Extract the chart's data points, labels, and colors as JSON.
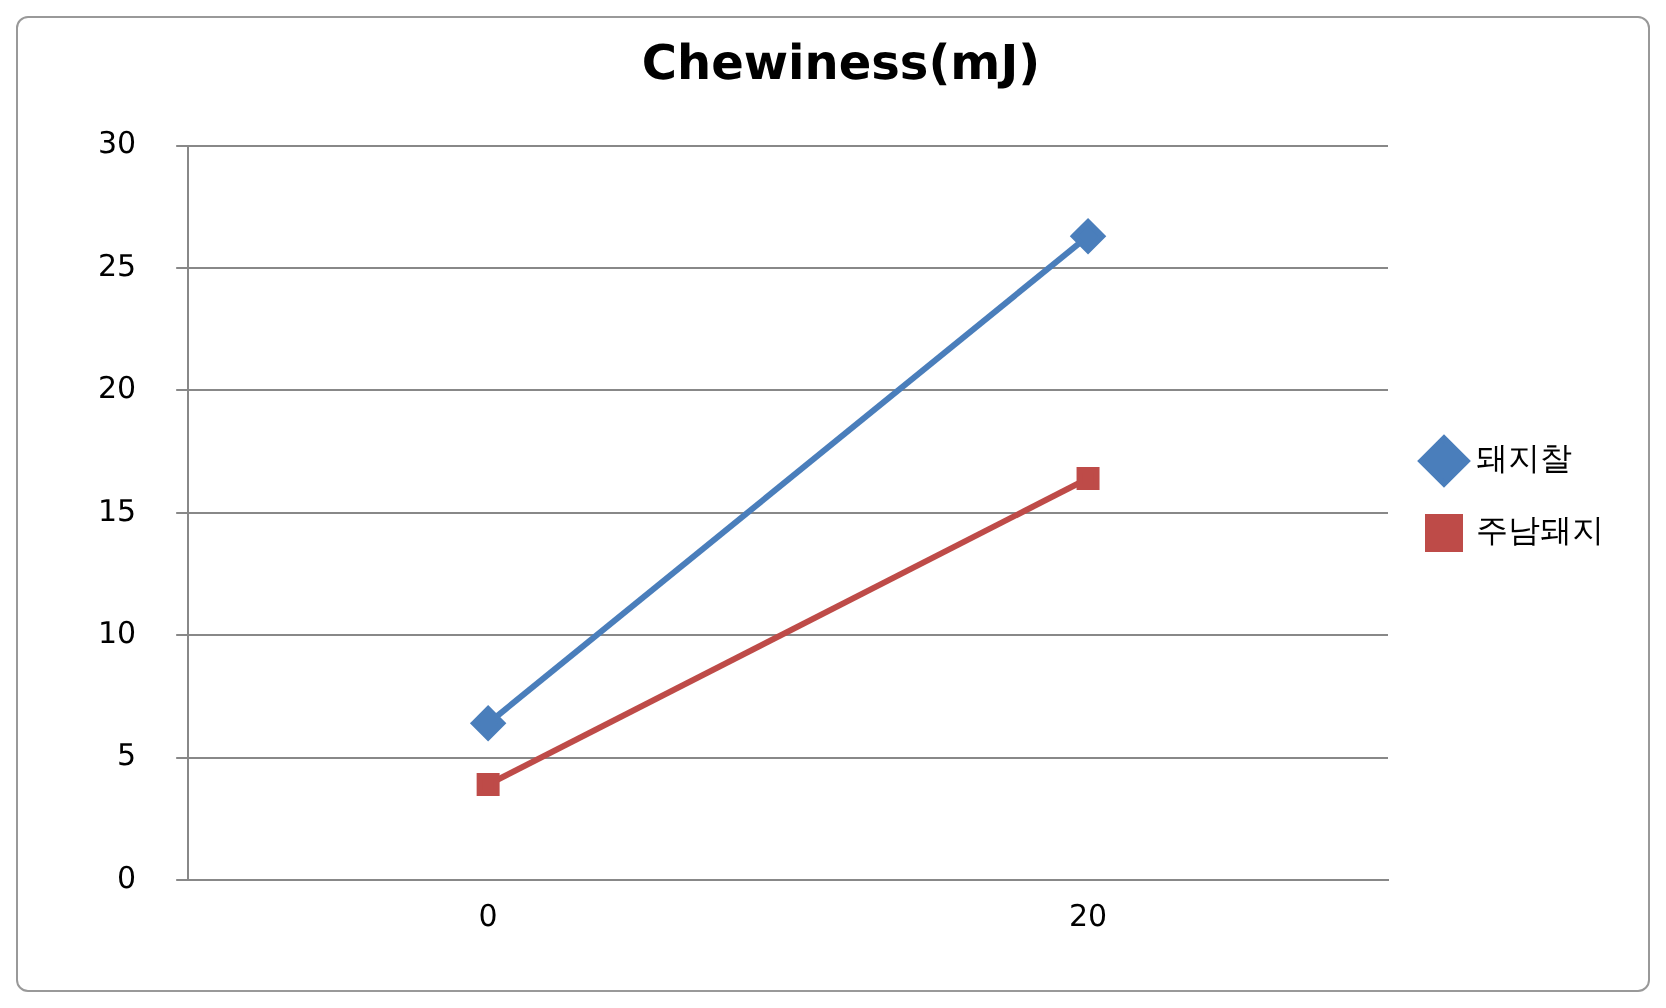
{
  "chart_data": {
    "type": "line",
    "title": "Chewiness(mJ)",
    "categories": [
      "0",
      "20"
    ],
    "series": [
      {
        "name": "돼지찰",
        "color": "#4a7ebb",
        "marker": "diamond",
        "values": [
          6.4,
          26.3
        ]
      },
      {
        "name": "주남돼지",
        "color": "#be4b48",
        "marker": "square",
        "values": [
          3.9,
          16.4
        ]
      }
    ],
    "ylim": [
      0,
      30
    ],
    "yticks": [
      0,
      5,
      10,
      15,
      20,
      25,
      30
    ],
    "grid": "y",
    "legend": "right",
    "line_style": "solid"
  }
}
